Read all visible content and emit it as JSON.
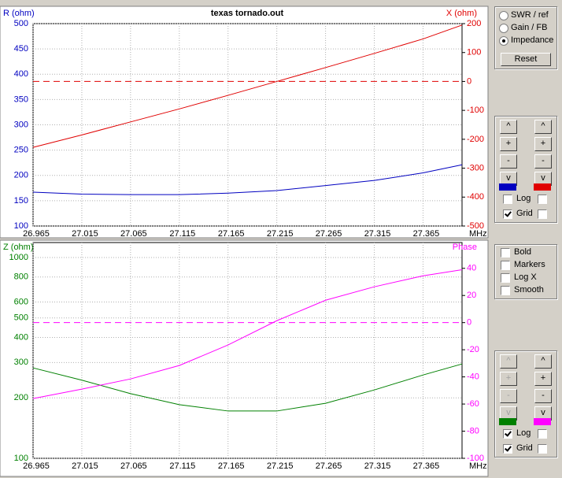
{
  "chart_data": [
    {
      "type": "line",
      "title": "texas tornado.out",
      "ylabel": "R (ohm)",
      "y2label": "X (ohm)",
      "xlabel": "MHz",
      "x": [
        26.965,
        27.015,
        27.065,
        27.115,
        27.165,
        27.215,
        27.265,
        27.315,
        27.365,
        27.405
      ],
      "xlim": [
        26.965,
        27.405
      ],
      "xticks": [
        26.965,
        27.015,
        27.065,
        27.115,
        27.165,
        27.215,
        27.265,
        27.315,
        27.365
      ],
      "ylim": [
        100,
        500
      ],
      "yticks": [
        100,
        150,
        200,
        250,
        300,
        350,
        400,
        450,
        500
      ],
      "y2lim": [
        -500,
        200
      ],
      "y2ticks": [
        -500,
        -400,
        -300,
        -200,
        -100,
        0,
        100,
        200
      ],
      "y2_reference": 0,
      "grid": true,
      "ylog": false,
      "series": [
        {
          "name": "R (ohm)",
          "color": "#0000c0",
          "values": [
            167,
            163,
            162,
            162,
            165,
            170,
            180,
            190,
            205,
            221
          ]
        },
        {
          "name": "X (ohm)",
          "color": "#e00000",
          "axis": "y2",
          "values": [
            -228,
            -185,
            -140,
            -95,
            -48,
            0,
            48,
            97,
            147,
            195
          ]
        }
      ]
    },
    {
      "type": "line",
      "ylabel": "Z (ohm)",
      "y2label": "Phase",
      "xlabel": "MHz",
      "x": [
        26.965,
        27.015,
        27.065,
        27.115,
        27.165,
        27.215,
        27.265,
        27.315,
        27.365,
        27.405
      ],
      "xlim": [
        26.965,
        27.405
      ],
      "xticks": [
        26.965,
        27.015,
        27.065,
        27.115,
        27.165,
        27.215,
        27.265,
        27.315,
        27.365
      ],
      "ylim": [
        100,
        1187
      ],
      "yticks": [
        100,
        200,
        300,
        400,
        500,
        600,
        800,
        1000
      ],
      "ylog": true,
      "y2lim": [
        -100,
        59
      ],
      "y2ticks": [
        -100,
        -80,
        -60,
        -40,
        -20,
        0,
        20,
        40
      ],
      "y2_reference": 0,
      "grid": true,
      "series": [
        {
          "name": "Z (ohm)",
          "color": "#008000",
          "values": [
            282,
            245,
            210,
            185,
            172,
            172,
            188,
            219,
            260,
            295
          ]
        },
        {
          "name": "Phase",
          "color": "#ff00ff",
          "axis": "y2",
          "values": [
            -56,
            -49,
            -41.5,
            -31.6,
            -16.5,
            1.4,
            16.5,
            26.4,
            34.5,
            39
          ]
        }
      ]
    }
  ],
  "controls": {
    "mode": {
      "options": [
        "SWR / ref",
        "Gain / FB",
        "Impedance"
      ],
      "selected": 2,
      "reset": "Reset"
    },
    "top_axes": {
      "buttons": [
        "^",
        "+",
        "-",
        "v"
      ],
      "enabled": [
        true,
        true
      ],
      "log_label": "Log",
      "log": [
        false,
        false
      ],
      "grid_label": "Grid",
      "grid": [
        true,
        false
      ]
    },
    "options": {
      "items": [
        "Bold",
        "Markers",
        "Log X",
        "Smooth"
      ],
      "checked": [
        false,
        false,
        false,
        false
      ]
    },
    "bottom_axes": {
      "buttons": [
        "^",
        "+",
        "-",
        "v"
      ],
      "enabled": [
        false,
        true
      ],
      "log_label": "Log",
      "log": [
        true,
        false
      ],
      "grid_label": "Grid",
      "grid": [
        true,
        false
      ]
    }
  }
}
